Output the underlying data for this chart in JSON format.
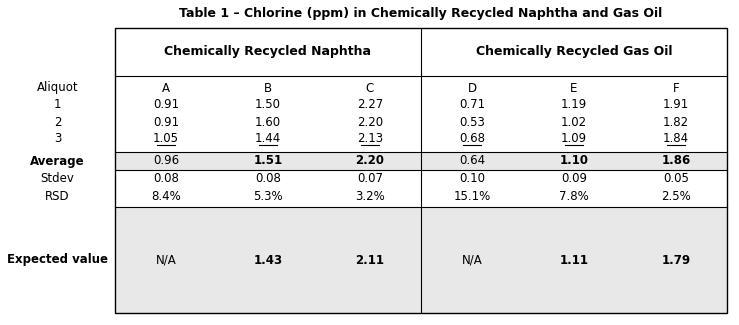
{
  "title": "Table 1 – Chlorine (ppm) in Chemically Recycled Naphtha and Gas Oil",
  "col_headers_top": [
    "Chemically Recycled Naphtha",
    "Chemically Recycled Gas Oil"
  ],
  "col_headers_sub": [
    "A",
    "B",
    "C",
    "D",
    "E",
    "F"
  ],
  "row_labels": [
    "Aliquot",
    "1",
    "2",
    "3",
    "Average",
    "Stdev",
    "RSD",
    "Expected value"
  ],
  "data": {
    "Aliquot": [
      "A",
      "B",
      "C",
      "D",
      "E",
      "F"
    ],
    "1": [
      "0.91",
      "1.50",
      "2.27",
      "0.71",
      "1.19",
      "1.91"
    ],
    "2": [
      "0.91",
      "1.60",
      "2.20",
      "0.53",
      "1.02",
      "1.82"
    ],
    "3": [
      "1.05",
      "1.44",
      "2.13",
      "0.68",
      "1.09",
      "1.84"
    ],
    "Average": [
      "0.96",
      "1.51",
      "2.20",
      "0.64",
      "1.10",
      "1.86"
    ],
    "Stdev": [
      "0.08",
      "0.08",
      "0.07",
      "0.10",
      "0.09",
      "0.05"
    ],
    "RSD": [
      "8.4%",
      "5.3%",
      "3.2%",
      "15.1%",
      "7.8%",
      "2.5%"
    ],
    "Expected value": [
      "N/A",
      "1.43",
      "2.11",
      "N/A",
      "1.11",
      "1.79"
    ]
  },
  "bold_cells": {
    "Average": [
      false,
      true,
      true,
      false,
      true,
      true
    ],
    "Expected value": [
      false,
      true,
      true,
      false,
      true,
      true
    ]
  },
  "bold_row_labels": [
    "Average",
    "Expected value"
  ],
  "underline_row": "3",
  "shade_color": "#e8e8e8",
  "bg_color": "#ffffff",
  "border_color": "#000000",
  "title_fontsize": 9.0,
  "cell_fontsize": 8.5,
  "header_fontsize": 9.0
}
